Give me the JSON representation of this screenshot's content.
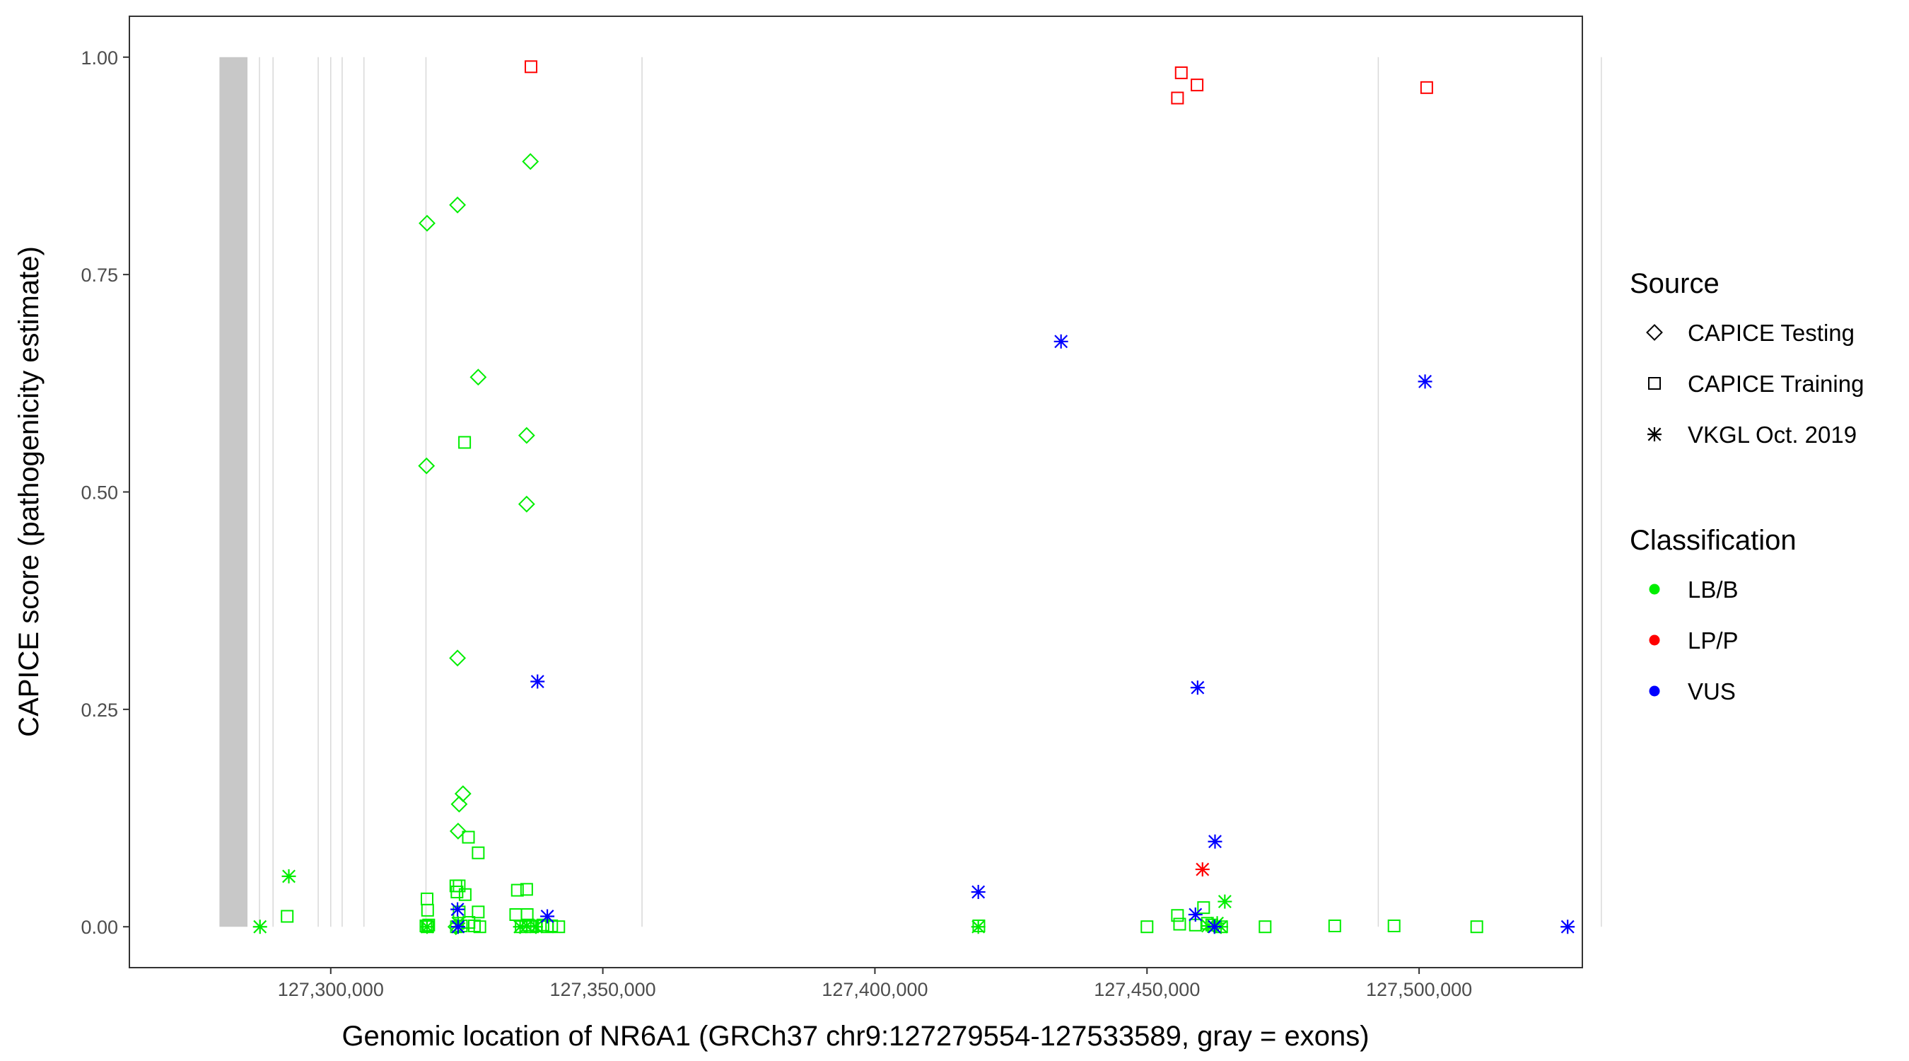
{
  "chart_data": {
    "type": "scatter",
    "xlabel": "Genomic location of NR6A1 (GRCh37 chr9:127279554-127533589, gray = exons)",
    "ylabel": "CAPICE score (pathogenicity estimate)",
    "xlim": [
      127263000,
      127530000
    ],
    "ylim": [
      -0.047,
      1.047
    ],
    "x_ticks": [
      127300000,
      127350000,
      127400000,
      127450000,
      127500000
    ],
    "x_tick_labels": [
      "127,300,000",
      "127,350,000",
      "127,400,000",
      "127,450,000",
      "127,500,000"
    ],
    "y_ticks": [
      0,
      0.25,
      0.5,
      0.75,
      1
    ],
    "y_tick_labels": [
      "0.00",
      "0.25",
      "0.50",
      "0.75",
      "1.00"
    ],
    "grid": false,
    "exons": [
      {
        "start": 127279554,
        "end": 127284700
      },
      {
        "start": 127286800,
        "end": 127287000
      },
      {
        "start": 127289300,
        "end": 127289500
      },
      {
        "start": 127297600,
        "end": 127297800
      },
      {
        "start": 127299900,
        "end": 127300100
      },
      {
        "start": 127302000,
        "end": 127302200
      },
      {
        "start": 127306000,
        "end": 127306200
      },
      {
        "start": 127317400,
        "end": 127317600
      },
      {
        "start": 127357100,
        "end": 127357300
      },
      {
        "start": 127492400,
        "end": 127492600
      },
      {
        "start": 127533400,
        "end": 127533589
      }
    ],
    "legends": [
      {
        "title": "Source",
        "items": [
          {
            "label": "CAPICE Testing",
            "shape": "diamond"
          },
          {
            "label": "CAPICE Training",
            "shape": "square"
          },
          {
            "label": "VKGL Oct. 2019",
            "shape": "asterisk"
          }
        ]
      },
      {
        "title": "Classification",
        "items": [
          {
            "label": "LB/B",
            "color": "#00ee00"
          },
          {
            "label": "LP/P",
            "color": "#ff0000"
          },
          {
            "label": "VUS",
            "color": "#0000ff"
          }
        ]
      }
    ],
    "colors": {
      "LB/B": "#00ee00",
      "LP/P": "#ff0000",
      "VUS": "#0000ff"
    },
    "series": [
      {
        "source": "CAPICE Testing",
        "classification": "LB/B",
        "points": [
          [
            127336700,
            0.88
          ],
          [
            127323300,
            0.83
          ],
          [
            127317700,
            0.809
          ],
          [
            127327100,
            0.632
          ],
          [
            127336000,
            0.565
          ],
          [
            127317600,
            0.53
          ],
          [
            127336000,
            0.486
          ],
          [
            127323300,
            0.309
          ],
          [
            127324300,
            0.153
          ],
          [
            127323600,
            0.141
          ],
          [
            127323400,
            0.11
          ],
          [
            127323000,
            0.0
          ]
        ]
      },
      {
        "source": "CAPICE Training",
        "classification": "LP/P",
        "points": [
          [
            127336800,
            0.989
          ],
          [
            127456300,
            0.982
          ],
          [
            127459200,
            0.968
          ],
          [
            127455600,
            0.953
          ],
          [
            127501400,
            0.965
          ]
        ]
      },
      {
        "source": "CAPICE Training",
        "classification": "LB/B",
        "points": [
          [
            127324600,
            0.557
          ],
          [
            127325300,
            0.103
          ],
          [
            127327100,
            0.085
          ],
          [
            127323000,
            0.047
          ],
          [
            127323600,
            0.047
          ],
          [
            127323200,
            0.04
          ],
          [
            127324700,
            0.037
          ],
          [
            127317700,
            0.032
          ],
          [
            127317800,
            0.019
          ],
          [
            127323600,
            0.017
          ],
          [
            127327100,
            0.017
          ],
          [
            127292000,
            0.012
          ],
          [
            127334300,
            0.042
          ],
          [
            127336000,
            0.043
          ],
          [
            127334000,
            0.014
          ],
          [
            127336100,
            0.014
          ],
          [
            127317500,
            0.001
          ],
          [
            127317800,
            0.0
          ],
          [
            127318000,
            0.002
          ],
          [
            127323100,
            0.0
          ],
          [
            127324000,
            0.001
          ],
          [
            127325400,
            0.005
          ],
          [
            127326400,
            0.001
          ],
          [
            127327400,
            0.0
          ],
          [
            127335000,
            0.0
          ],
          [
            127336300,
            0.002
          ],
          [
            127337100,
            0.0
          ],
          [
            127337800,
            0.001
          ],
          [
            127339000,
            0.002
          ],
          [
            127339800,
            0.0
          ],
          [
            127340600,
            0.001
          ],
          [
            127341900,
            0.0
          ],
          [
            127419100,
            0.001
          ],
          [
            127450000,
            0.0
          ],
          [
            127456000,
            0.003
          ],
          [
            127455600,
            0.013
          ],
          [
            127458900,
            0.002
          ],
          [
            127460400,
            0.022
          ],
          [
            127461100,
            0.004
          ],
          [
            127461900,
            0.002
          ],
          [
            127463700,
            0.0
          ],
          [
            127471700,
            0.0
          ],
          [
            127484500,
            0.001
          ],
          [
            127495400,
            0.001
          ],
          [
            127510600,
            0.0
          ]
        ]
      },
      {
        "source": "VKGL Oct. 2019",
        "classification": "LB/B",
        "points": [
          [
            127292300,
            0.058
          ],
          [
            127287000,
            0.0
          ],
          [
            127317700,
            0.0
          ],
          [
            127323400,
            0.004
          ],
          [
            127334800,
            0.0
          ],
          [
            127336000,
            0.001
          ],
          [
            127337700,
            0.0
          ],
          [
            127419000,
            0.0
          ],
          [
            127461200,
            0.001
          ],
          [
            127462900,
            0.004
          ],
          [
            127463600,
            0.0
          ],
          [
            127464300,
            0.029
          ]
        ]
      },
      {
        "source": "VKGL Oct. 2019",
        "classification": "LP/P",
        "points": [
          [
            127460200,
            0.066
          ]
        ]
      },
      {
        "source": "VKGL Oct. 2019",
        "classification": "VUS",
        "points": [
          [
            127434200,
            0.673
          ],
          [
            127501100,
            0.627
          ],
          [
            127338000,
            0.282
          ],
          [
            127459300,
            0.275
          ],
          [
            127462500,
            0.098
          ],
          [
            127419000,
            0.04
          ],
          [
            127323300,
            0.02
          ],
          [
            127339800,
            0.012
          ],
          [
            127458900,
            0.014
          ],
          [
            127323400,
            0.0
          ],
          [
            127462400,
            0.0
          ],
          [
            127527300,
            0.0
          ]
        ]
      }
    ]
  }
}
